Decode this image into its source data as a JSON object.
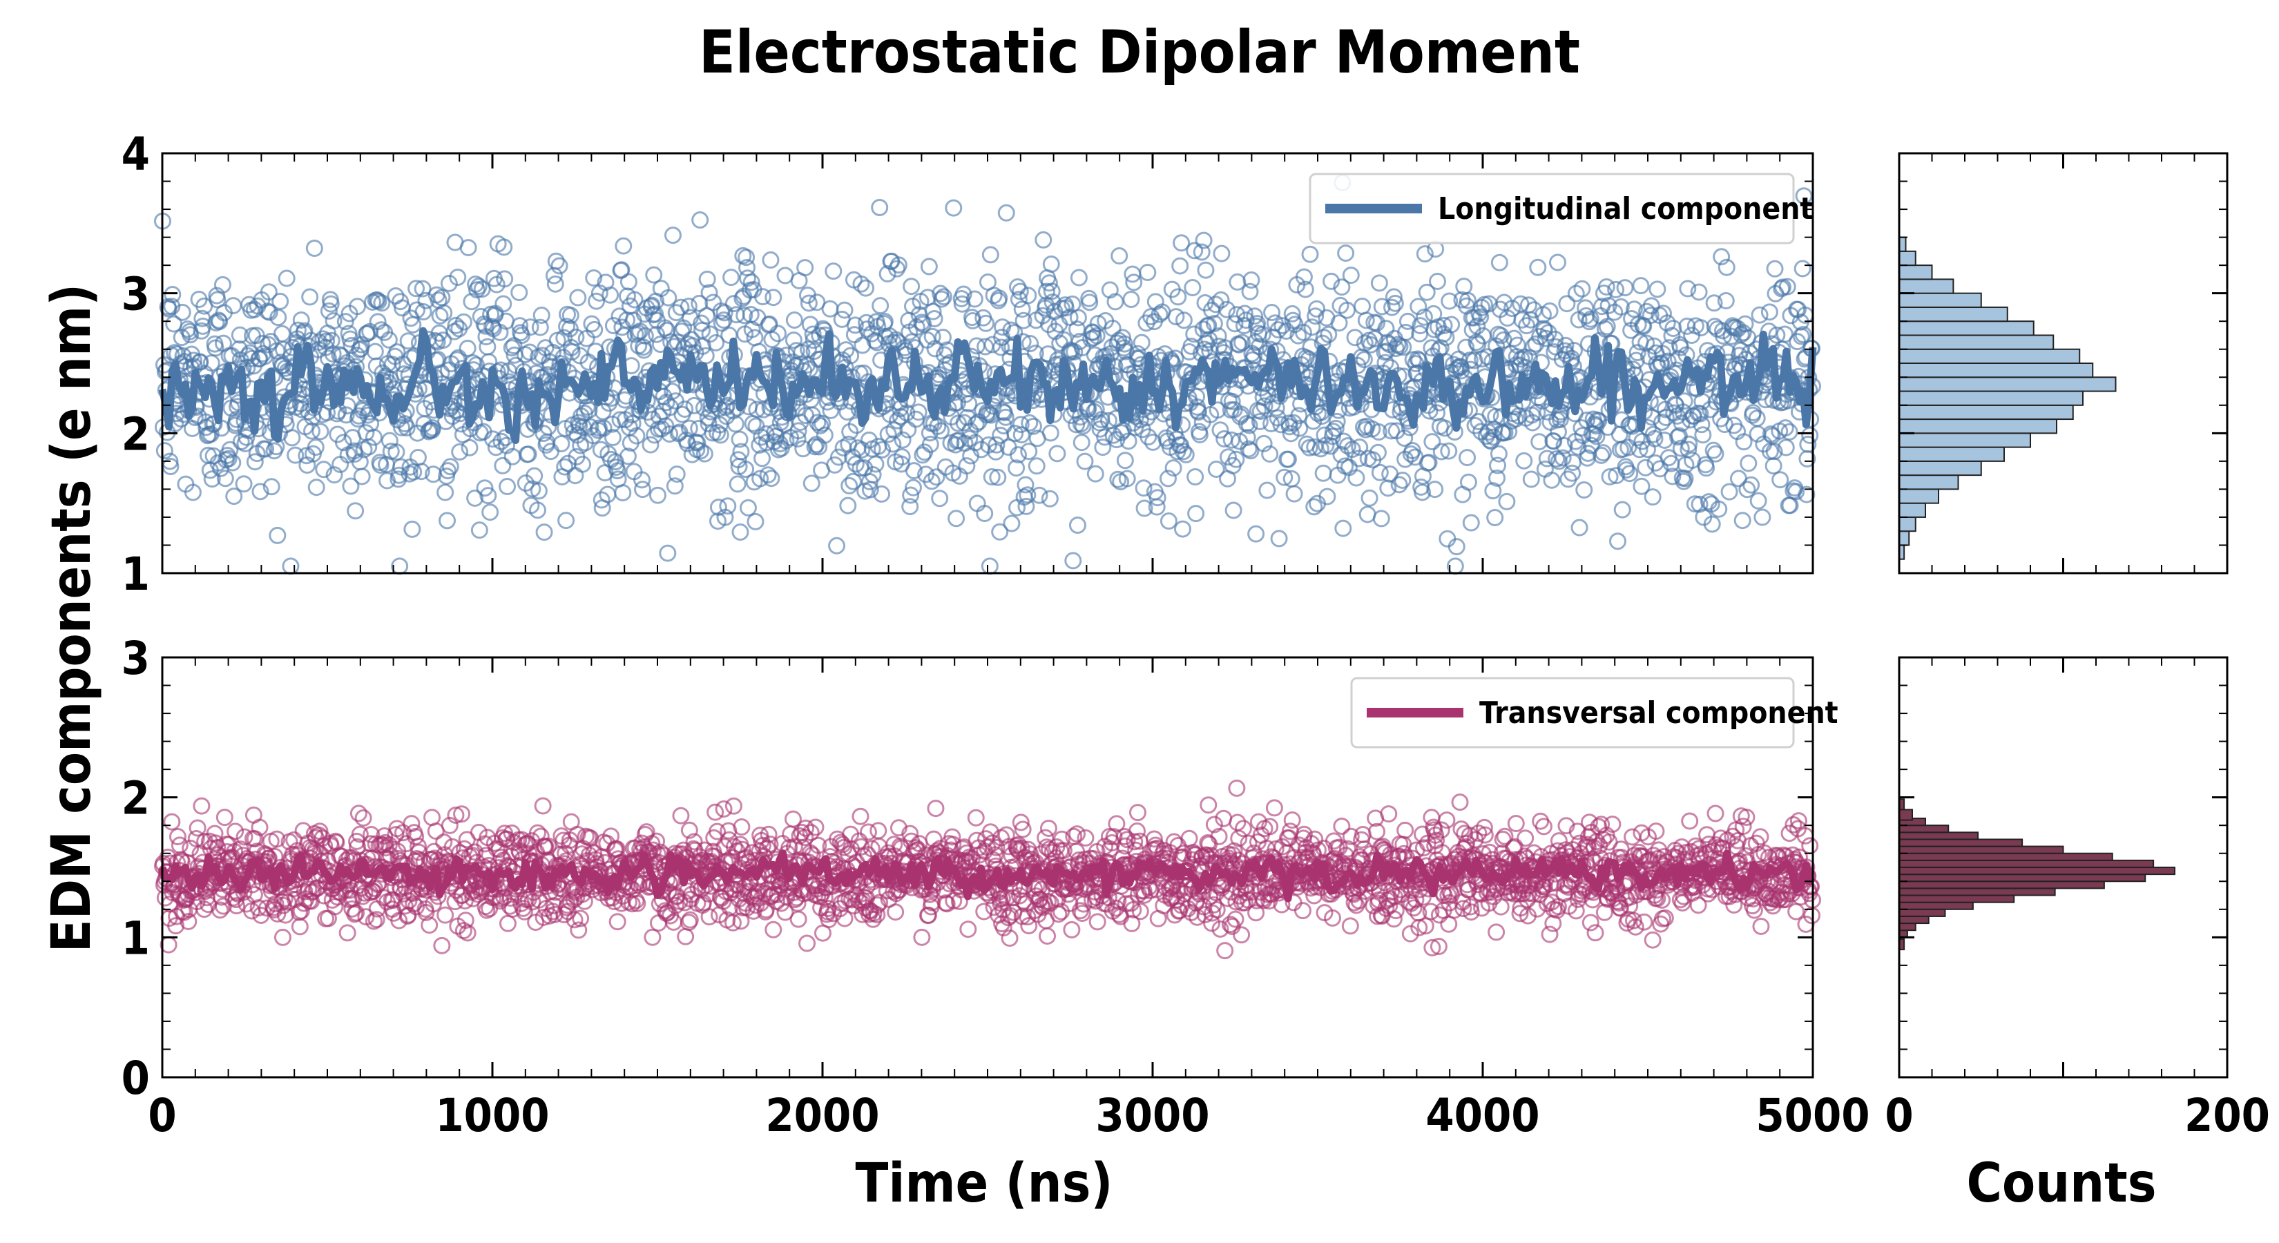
{
  "figure": {
    "title": "Electrostatic Dipolar Moment",
    "ylabel": "EDM components (e nm)",
    "xlabel": "Time (ns)",
    "hist_xlabel": "Counts"
  },
  "chart_data": [
    {
      "type": "scatter",
      "title": "",
      "xlabel": "Time (ns)",
      "ylabel": "EDM components (e nm)",
      "xlim": [
        0,
        5000
      ],
      "ylim": [
        1,
        4
      ],
      "xticks": [
        "0",
        "1000",
        "2000",
        "3000",
        "4000",
        "5000"
      ],
      "yticks": [
        "1",
        "2",
        "3",
        "4"
      ],
      "grid": false,
      "legend_position": "top-right",
      "marker": "open-circle",
      "series": [
        {
          "name": "Longitudinal component",
          "color": "#4a77a8",
          "point_mean": 2.35,
          "point_sd": 0.42,
          "running_mean_level": 2.35,
          "running_mean_range": [
            1.95,
            2.8
          ]
        }
      ]
    },
    {
      "type": "scatter",
      "title": "",
      "xlabel": "Time (ns)",
      "ylabel": "EDM components (e nm)",
      "xlim": [
        0,
        5000
      ],
      "ylim": [
        0,
        3
      ],
      "xticks": [
        "0",
        "1000",
        "2000",
        "3000",
        "4000",
        "5000"
      ],
      "yticks": [
        "0",
        "1",
        "2",
        "3"
      ],
      "grid": false,
      "legend_position": "top-right",
      "marker": "open-circle",
      "series": [
        {
          "name": "Transversal component",
          "color": "#a8336f",
          "point_mean": 1.45,
          "point_sd": 0.17,
          "running_mean_level": 1.45,
          "running_mean_range": [
            1.25,
            1.6
          ]
        }
      ]
    },
    {
      "type": "bar",
      "orientation": "horizontal",
      "xlabel": "Counts",
      "xlim": [
        0,
        200
      ],
      "xticks": [
        "0",
        "200"
      ],
      "ylim": [
        1,
        4
      ],
      "color": "#a7c4de",
      "bin_centers": [
        1.15,
        1.25,
        1.35,
        1.45,
        1.55,
        1.65,
        1.75,
        1.85,
        1.95,
        2.05,
        2.15,
        2.25,
        2.35,
        2.45,
        2.55,
        2.65,
        2.75,
        2.85,
        2.95,
        3.05,
        3.15,
        3.25,
        3.35
      ],
      "counts": [
        3,
        6,
        10,
        16,
        24,
        36,
        50,
        64,
        80,
        96,
        106,
        112,
        132,
        118,
        110,
        94,
        82,
        66,
        50,
        33,
        20,
        10,
        4
      ]
    },
    {
      "type": "bar",
      "orientation": "horizontal",
      "xlabel": "Counts",
      "xlim": [
        0,
        200
      ],
      "xticks": [
        "0",
        "200"
      ],
      "ylim": [
        0,
        3
      ],
      "color": "#7a3a52",
      "bin_centers": [
        0.95,
        1.025,
        1.075,
        1.125,
        1.175,
        1.225,
        1.275,
        1.325,
        1.375,
        1.425,
        1.475,
        1.525,
        1.575,
        1.625,
        1.675,
        1.725,
        1.775,
        1.825,
        1.875,
        1.95
      ],
      "counts": [
        3,
        5,
        10,
        18,
        28,
        45,
        70,
        95,
        125,
        150,
        168,
        155,
        130,
        100,
        75,
        48,
        30,
        16,
        8,
        3
      ]
    }
  ]
}
